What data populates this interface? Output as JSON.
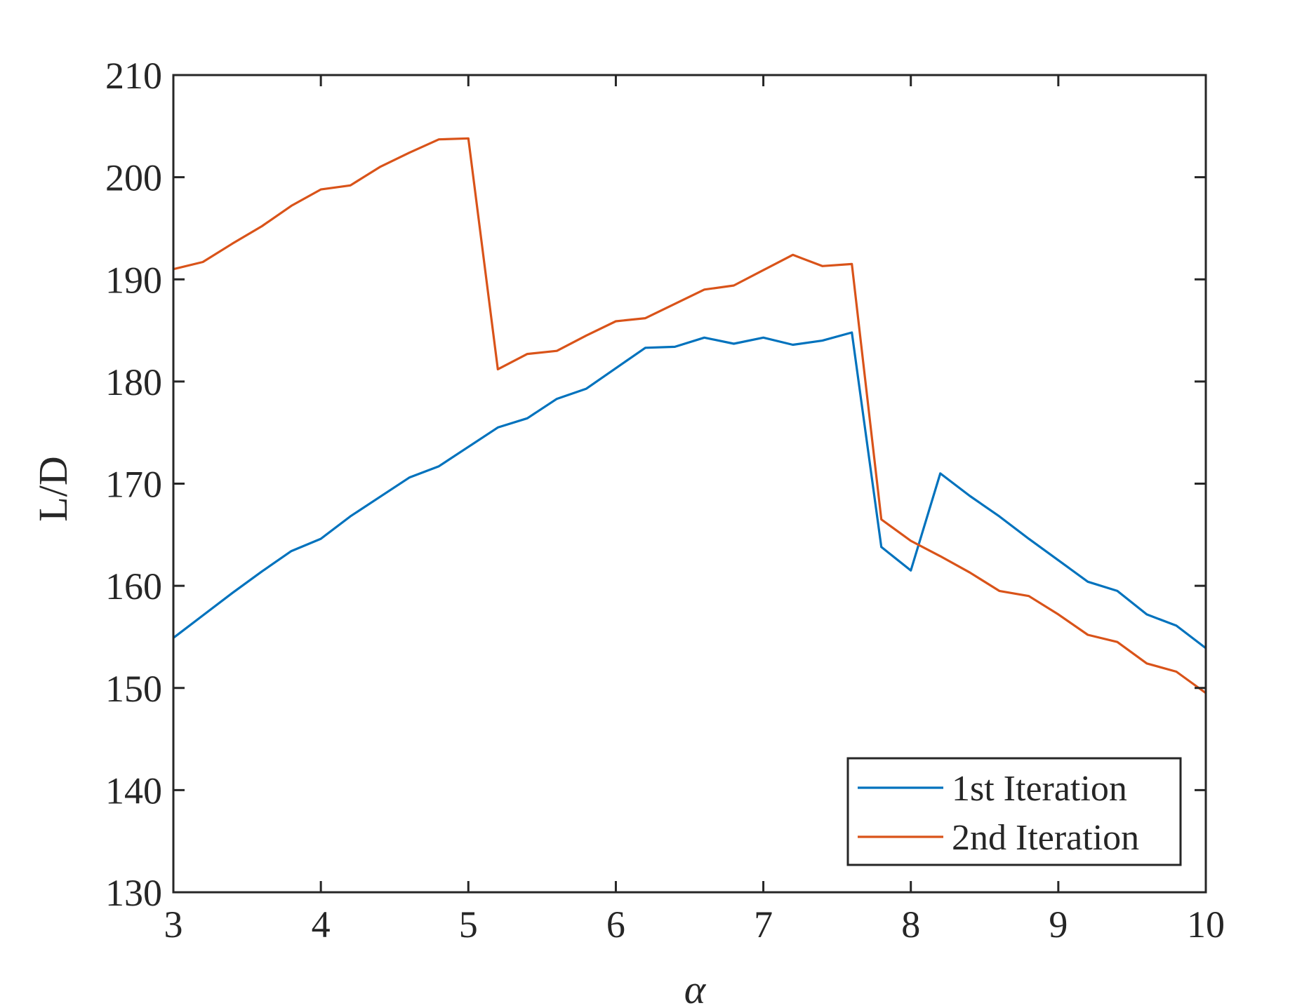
{
  "chart_data": {
    "type": "line",
    "xlabel": "α",
    "ylabel": "L/D",
    "xlim": [
      3,
      10
    ],
    "ylim": [
      130,
      210
    ],
    "xticks": [
      "3",
      "4",
      "5",
      "6",
      "7",
      "8",
      "9",
      "10"
    ],
    "yticks": [
      "130",
      "140",
      "150",
      "160",
      "170",
      "180",
      "190",
      "200",
      "210"
    ],
    "legend_position": "bottom-right",
    "grid": false,
    "x": [
      3.0,
      3.2,
      3.4,
      3.6,
      3.8,
      4.0,
      4.2,
      4.4,
      4.6,
      4.8,
      5.0,
      5.2,
      5.4,
      5.6,
      5.8,
      6.0,
      6.2,
      6.4,
      6.6,
      6.8,
      7.0,
      7.2,
      7.4,
      7.6,
      7.8,
      8.0,
      8.2,
      8.4,
      8.6,
      8.8,
      9.0,
      9.2,
      9.4,
      9.6,
      9.8,
      10.0
    ],
    "series": [
      {
        "name": "1st Iteration",
        "color": "#0072BD",
        "values": [
          154.9,
          157.1,
          159.3,
          161.4,
          163.4,
          164.6,
          166.8,
          168.7,
          170.6,
          171.7,
          173.6,
          175.5,
          176.4,
          178.3,
          179.3,
          181.3,
          183.3,
          183.4,
          184.3,
          183.7,
          184.3,
          183.6,
          184.0,
          184.8,
          163.8,
          161.5,
          171.0,
          168.8,
          166.8,
          164.6,
          162.5,
          160.4,
          159.5,
          157.2,
          156.1,
          153.9
        ]
      },
      {
        "name": "2nd Iteration",
        "color": "#D95319",
        "values": [
          191.0,
          191.7,
          193.5,
          195.2,
          197.2,
          198.8,
          199.2,
          201.0,
          202.4,
          203.7,
          203.8,
          181.2,
          182.7,
          183.0,
          184.5,
          185.9,
          186.2,
          187.6,
          189.0,
          189.4,
          190.9,
          192.4,
          191.3,
          191.5,
          166.5,
          164.4,
          162.9,
          161.3,
          159.5,
          159.0,
          157.2,
          155.2,
          154.5,
          152.4,
          151.6,
          149.5
        ]
      }
    ]
  }
}
